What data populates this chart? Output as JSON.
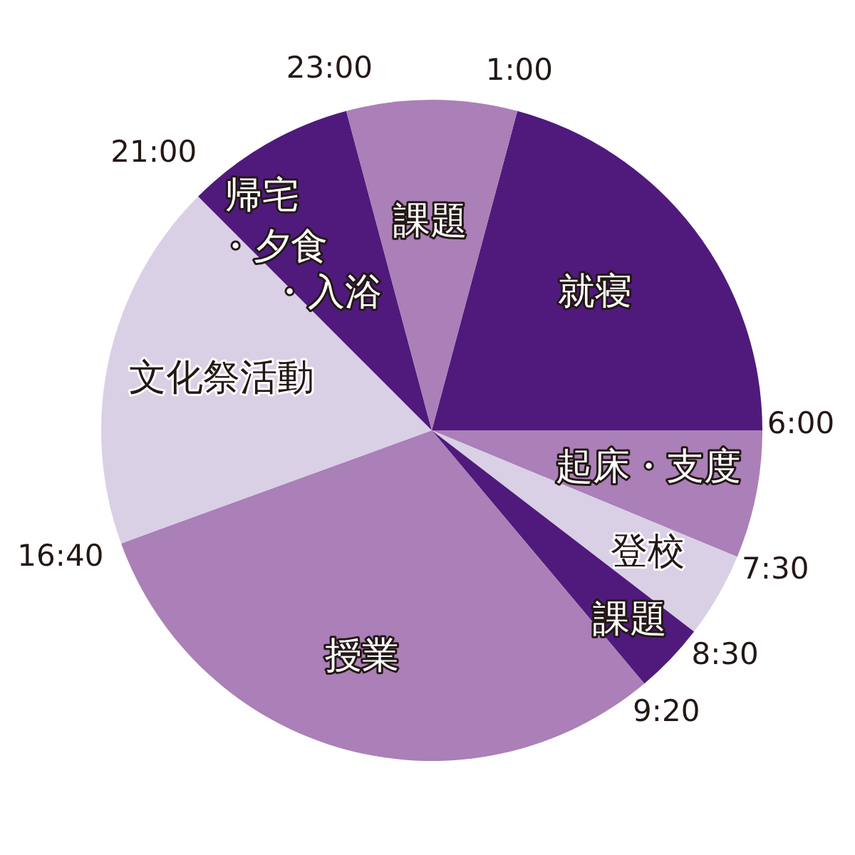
{
  "chart_data": {
    "type": "pie",
    "categories": [
      "就寝",
      "起床・支度",
      "登校",
      "課題",
      "授業",
      "文化祭活動",
      "帰宅・夕食・入浴",
      "課題"
    ],
    "values": [
      20.83,
      6.25,
      4.17,
      3.47,
      30.56,
      18.06,
      8.33,
      8.33
    ],
    "colors": [
      "#4f1a7c",
      "#ab7fb7",
      "#d9d0e5",
      "#4f1a7c",
      "#ab7fb7",
      "#d9d0e5",
      "#4f1a7c",
      "#ab7fb7"
    ],
    "annotations": [
      "6:00",
      "7:30",
      "8:30",
      "9:20",
      "16:40",
      "21:00",
      "23:00",
      "1:00"
    ]
  }
}
